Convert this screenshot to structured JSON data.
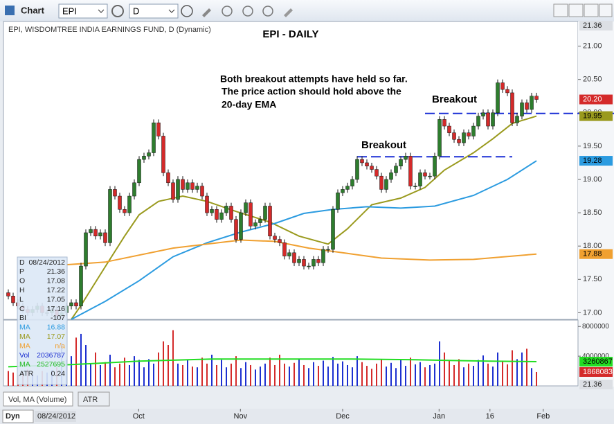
{
  "ui": {
    "window_title": "Chart",
    "symbol": "EPI",
    "interval": "D",
    "header": "EPI, WISDOMTREE INDIA EARNINGS FUND, D (Dynamic)",
    "info": [
      [
        "D",
        "08/24/2012"
      ],
      [
        "P",
        "21.36"
      ],
      [
        "O",
        "17.08"
      ],
      [
        "H",
        "17.22"
      ],
      [
        "L",
        "17.05"
      ],
      [
        "C",
        "17.16"
      ],
      [
        "BI",
        "-107"
      ],
      [
        "MA",
        "16.88"
      ],
      [
        "MA",
        "17.07"
      ],
      [
        "MA",
        "n/a"
      ],
      [
        "Vol",
        "2036787"
      ],
      [
        "MA",
        "2527695"
      ],
      [
        "ATR",
        "0.24"
      ]
    ],
    "tabs": [
      "Vol, MA (Volume)",
      "ATR"
    ],
    "footer_mode": "Dyn",
    "footer_date": "08/24/2012"
  },
  "chart_data": [
    {
      "type": "candlestick",
      "title": "EPI - DAILY",
      "annotations": [
        "Both breakout attempts have held so far.",
        "The price action should hold above the",
        "20-day EMA",
        "Breakout",
        "Breakout"
      ],
      "up_color": "#2e7d2e",
      "down_color": "#d42a2a",
      "open": [
        17.3,
        17.25,
        17.15,
        17.1,
        17.05,
        17.0,
        17.05,
        17.1,
        17.0,
        17.0,
        17.05,
        16.95,
        17.0,
        17.1,
        17.15,
        17.1,
        17.7,
        18.2,
        18.25,
        18.15,
        18.2,
        18.05,
        18.85,
        18.75,
        18.55,
        18.5,
        18.75,
        18.95,
        19.3,
        19.35,
        19.4,
        19.85,
        19.65,
        19.1,
        18.95,
        18.7,
        19.0,
        18.85,
        18.95,
        18.85,
        18.9,
        18.75,
        18.5,
        18.55,
        18.4,
        18.5,
        18.6,
        18.4,
        18.1,
        18.5,
        18.65,
        18.3,
        18.35,
        18.4,
        18.6,
        18.15,
        18.1,
        18.05,
        17.85,
        17.9,
        17.75,
        17.8,
        17.7,
        17.7,
        17.8,
        17.75,
        17.95,
        17.95,
        18.55,
        18.8,
        18.85,
        18.9,
        19.0,
        19.3,
        19.25,
        19.2,
        19.15,
        19.05,
        18.85,
        19.0,
        19.1,
        19.2,
        19.3,
        19.35,
        18.9,
        18.9,
        19.1,
        19.05,
        19.05,
        19.35,
        19.9,
        19.8,
        19.7,
        19.6,
        19.55,
        19.7,
        19.65,
        19.8,
        19.95,
        20.0,
        19.8,
        20.0,
        20.45,
        20.35,
        20.3,
        19.85,
        19.95,
        20.15,
        20.05,
        20.25
      ],
      "high": [
        17.35,
        17.3,
        17.2,
        17.15,
        17.1,
        17.1,
        17.15,
        17.15,
        17.05,
        17.1,
        17.1,
        17.05,
        17.15,
        17.2,
        17.2,
        17.75,
        18.25,
        18.3,
        18.3,
        18.25,
        18.25,
        18.9,
        18.9,
        18.8,
        18.6,
        18.8,
        19.0,
        19.35,
        19.4,
        19.45,
        19.9,
        19.9,
        19.7,
        19.15,
        19.0,
        19.05,
        19.05,
        19.0,
        19.0,
        18.95,
        18.95,
        18.8,
        18.6,
        18.6,
        18.55,
        18.65,
        18.65,
        18.45,
        18.55,
        18.7,
        18.7,
        18.4,
        18.45,
        18.65,
        18.65,
        18.2,
        18.15,
        18.1,
        17.95,
        17.95,
        17.85,
        17.85,
        17.75,
        17.85,
        17.85,
        18.0,
        18.0,
        18.6,
        18.85,
        18.9,
        18.95,
        19.05,
        19.35,
        19.35,
        19.3,
        19.25,
        19.2,
        19.1,
        19.05,
        19.15,
        19.25,
        19.35,
        19.4,
        19.4,
        18.95,
        19.15,
        19.15,
        19.1,
        19.4,
        19.95,
        19.95,
        19.85,
        19.75,
        19.65,
        19.75,
        19.75,
        19.85,
        20.0,
        20.05,
        20.05,
        20.05,
        20.5,
        20.5,
        20.4,
        20.35,
        20.0,
        20.2,
        20.2,
        20.3,
        20.3
      ],
      "low": [
        17.2,
        17.1,
        17.05,
        17.0,
        16.95,
        16.95,
        17.0,
        16.95,
        16.95,
        16.95,
        16.9,
        16.9,
        16.95,
        17.05,
        17.05,
        17.05,
        17.65,
        18.15,
        18.1,
        18.1,
        18.0,
        18.0,
        18.7,
        18.5,
        18.45,
        18.45,
        18.7,
        18.9,
        19.25,
        19.3,
        19.35,
        19.6,
        19.05,
        18.9,
        18.65,
        18.65,
        18.8,
        18.8,
        18.8,
        18.8,
        18.7,
        18.45,
        18.45,
        18.35,
        18.35,
        18.45,
        18.35,
        18.05,
        18.05,
        18.45,
        18.25,
        18.25,
        18.3,
        18.35,
        18.1,
        18.05,
        18.0,
        17.8,
        17.8,
        17.7,
        17.7,
        17.65,
        17.65,
        17.65,
        17.7,
        17.7,
        17.9,
        17.9,
        18.5,
        18.75,
        18.8,
        18.85,
        18.95,
        19.2,
        19.15,
        19.1,
        19.0,
        18.8,
        18.8,
        18.95,
        19.05,
        19.15,
        19.25,
        18.85,
        18.85,
        18.85,
        19.0,
        19.0,
        19.0,
        19.3,
        19.75,
        19.65,
        19.55,
        19.5,
        19.5,
        19.6,
        19.6,
        19.75,
        19.9,
        19.75,
        19.75,
        19.95,
        20.3,
        20.25,
        19.8,
        19.8,
        19.9,
        20.0,
        20.0,
        20.15
      ],
      "close": [
        17.25,
        17.15,
        17.1,
        17.05,
        17.0,
        17.05,
        17.1,
        17.0,
        17.0,
        17.05,
        16.95,
        17.0,
        17.1,
        17.15,
        17.1,
        17.7,
        18.2,
        18.25,
        18.15,
        18.2,
        18.05,
        18.85,
        18.75,
        18.55,
        18.5,
        18.75,
        18.95,
        19.3,
        19.35,
        19.4,
        19.85,
        19.65,
        19.1,
        18.95,
        18.7,
        19.0,
        18.85,
        18.95,
        18.85,
        18.9,
        18.75,
        18.5,
        18.55,
        18.4,
        18.5,
        18.6,
        18.4,
        18.1,
        18.5,
        18.65,
        18.3,
        18.35,
        18.4,
        18.6,
        18.15,
        18.1,
        18.05,
        17.85,
        17.9,
        17.75,
        17.8,
        17.7,
        17.7,
        17.8,
        17.75,
        17.95,
        17.95,
        18.55,
        18.8,
        18.85,
        18.9,
        19.0,
        19.3,
        19.25,
        19.2,
        19.15,
        19.05,
        18.85,
        19.0,
        19.1,
        19.2,
        19.3,
        19.35,
        18.9,
        18.9,
        19.1,
        19.05,
        19.05,
        19.35,
        19.9,
        19.8,
        19.7,
        19.6,
        19.55,
        19.7,
        19.65,
        19.8,
        19.95,
        20.0,
        19.8,
        20.0,
        20.45,
        20.35,
        20.3,
        19.85,
        19.95,
        20.15,
        20.05,
        20.25,
        20.2
      ],
      "close_label": "20.20",
      "overlays": [
        {
          "color": "#9a9a1e",
          "x": [
            13,
            15,
            20,
            24,
            27,
            31,
            36,
            41,
            47,
            54,
            60,
            66,
            70,
            75,
            81,
            86,
            90,
            96,
            100,
            104,
            109
          ],
          "values": [
            16.9,
            17.11,
            17.69,
            18.15,
            18.47,
            18.67,
            18.75,
            18.67,
            18.52,
            18.36,
            18.15,
            18.03,
            18.26,
            18.62,
            18.72,
            18.88,
            19.14,
            19.4,
            19.61,
            19.84,
            19.95
          ],
          "last_label": "19.95"
        },
        {
          "color": "#2b9be0",
          "x": [
            13,
            20,
            27,
            34,
            41,
            48,
            55,
            61,
            67,
            74,
            81,
            88,
            96,
            103,
            109
          ],
          "values": [
            16.9,
            17.17,
            17.48,
            17.84,
            18.05,
            18.21,
            18.34,
            18.49,
            18.55,
            18.59,
            18.57,
            18.6,
            18.76,
            19.0,
            19.28
          ],
          "last_label": "19.28"
        },
        {
          "color": "#f0a030",
          "x": [
            12,
            20,
            34,
            48,
            55,
            62,
            70,
            77,
            87,
            96,
            109
          ],
          "values": [
            17.72,
            17.76,
            17.97,
            18.09,
            18.07,
            17.97,
            17.89,
            17.82,
            17.79,
            17.8,
            17.88
          ],
          "last_label": "17.88"
        }
      ],
      "levels": [
        {
          "value": 19.34,
          "x": [
            72,
            104
          ],
          "color": "#1a2fd6"
        },
        {
          "value": 19.99,
          "x": [
            86,
            125
          ],
          "color": "#1a2fd6"
        }
      ],
      "xlim": [
        -1,
        117.57
      ],
      "xticks": [
        {
          "value": 26.9,
          "label": "Oct"
        },
        {
          "value": 47.9,
          "label": "Nov"
        },
        {
          "value": 69,
          "label": "Dec"
        },
        {
          "value": 88.9,
          "label": "Jan"
        },
        {
          "value": 99.4,
          "label": "16"
        },
        {
          "value": 110.4,
          "label": "Feb"
        }
      ],
      "ylim": [
        16.9,
        21.37
      ],
      "yticks": [
        {
          "value": 17,
          "label": "17.00"
        },
        {
          "value": 17.5,
          "label": "17.50"
        },
        {
          "value": 18,
          "label": "18.00"
        },
        {
          "value": 18.5,
          "label": "18.50"
        },
        {
          "value": 19,
          "label": "19.00"
        },
        {
          "value": 19.5,
          "label": "19.50"
        },
        {
          "value": 20,
          "label": "20.00"
        },
        {
          "value": 20.5,
          "label": "20.50"
        },
        {
          "value": 21,
          "label": "21.00"
        }
      ]
    },
    {
      "type": "volume_bar",
      "up_color": "#1c2fd0",
      "down_color": "#d42a2a",
      "values": [
        2000000,
        1800000,
        1500000,
        1700000,
        2200000,
        1600000,
        1400000,
        2000000,
        1800000,
        2100000,
        2500000,
        5800000,
        3500000,
        4000000,
        6500000,
        7000000,
        5500000,
        3000000,
        4500000,
        2800000,
        3200000,
        4200000,
        2500000,
        3000000,
        3800000,
        2800000,
        4000000,
        3500000,
        2500000,
        3600000,
        3000000,
        4500000,
        6000000,
        5500000,
        7500000,
        3000000,
        2800000,
        3500000,
        2600000,
        2500000,
        3800000,
        3000000,
        4200000,
        2800000,
        3500000,
        2500000,
        3000000,
        4000000,
        2400000,
        3200000,
        2800000,
        2200000,
        2600000,
        3000000,
        3800000,
        2800000,
        4200000,
        3000000,
        2600000,
        3100000,
        3600000,
        2800000,
        2400000,
        3200000,
        2700000,
        3400000,
        2600000,
        3900000,
        3000000,
        3300000,
        2800000,
        2500000,
        4000000,
        3200000,
        2700000,
        2300000,
        3000000,
        3600000,
        2600000,
        3100000,
        2400000,
        3500000,
        2700000,
        3800000,
        2900000,
        3200000,
        2500000,
        2800000,
        3000000,
        6000000,
        4500000,
        3400000,
        2800000,
        3600000,
        2500000,
        3000000,
        2700000,
        3500000,
        4100000,
        3000000,
        2600000,
        4500000,
        3300000,
        2900000,
        4800000,
        3600000,
        4500000,
        5000000,
        2400000,
        1868083
      ],
      "last_label": "1868083",
      "ma": {
        "color": "#22dd22",
        "x": [
          0,
          13,
          27,
          42,
          55,
          70,
          84,
          99,
          109
        ],
        "values": [
          2570000,
          2860000,
          3330000,
          3620000,
          3620000,
          3620000,
          3520000,
          3330000,
          3260867
        ],
        "last_label": "3260867"
      },
      "ylim": [
        0,
        8860000
      ],
      "yticks": [
        4000000,
        8000000
      ]
    }
  ]
}
